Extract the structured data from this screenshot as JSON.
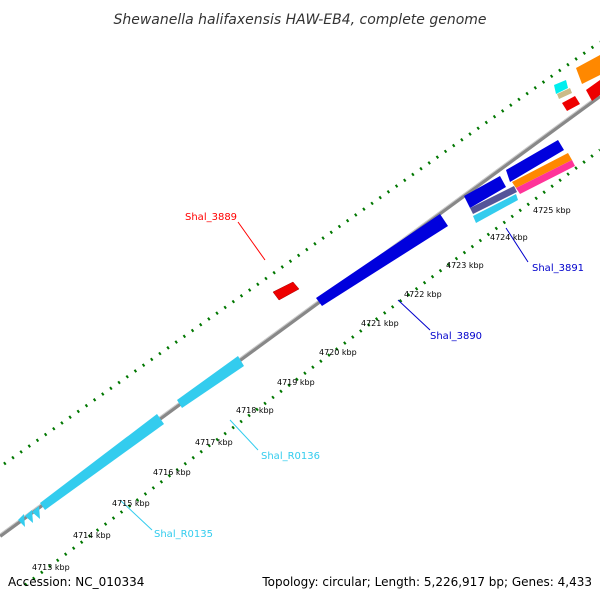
{
  "title": "Shewanella halifaxensis HAW-EB4, complete genome",
  "footer": {
    "accession": "Accession: NC_010334",
    "summary": "Topology: circular; Length: 5,226,917 bp; Genes: 4,433"
  },
  "ticks": [
    {
      "label": "4713 kbp"
    },
    {
      "label": "4714 kbp"
    },
    {
      "label": "4715 kbp"
    },
    {
      "label": "4716 kbp"
    },
    {
      "label": "4717 kbp"
    },
    {
      "label": "4718 kbp"
    },
    {
      "label": "4719 kbp"
    },
    {
      "label": "4720 kbp"
    },
    {
      "label": "4721 kbp"
    },
    {
      "label": "4722 kbp"
    },
    {
      "label": "4723 kbp"
    },
    {
      "label": "4724 kbp"
    },
    {
      "label": "4725 kbp"
    }
  ],
  "gene_labels": [
    {
      "text": "Shal_3889",
      "color": "#ff0000"
    },
    {
      "text": "Shal_3891",
      "color": "#0000cc"
    },
    {
      "text": "Shal_3890",
      "color": "#0000cc"
    },
    {
      "text": "Shal_R0136",
      "color": "#33ccee"
    },
    {
      "text": "Shal_R0135",
      "color": "#33ccee"
    }
  ],
  "colors": {
    "cds": "#0000dd",
    "rna": "#33ccee",
    "pseudo": "#ff0000",
    "orange": "#ff8800",
    "magenta": "#ff3399",
    "backbone": "#888888",
    "gc_ticks": "#007700"
  }
}
